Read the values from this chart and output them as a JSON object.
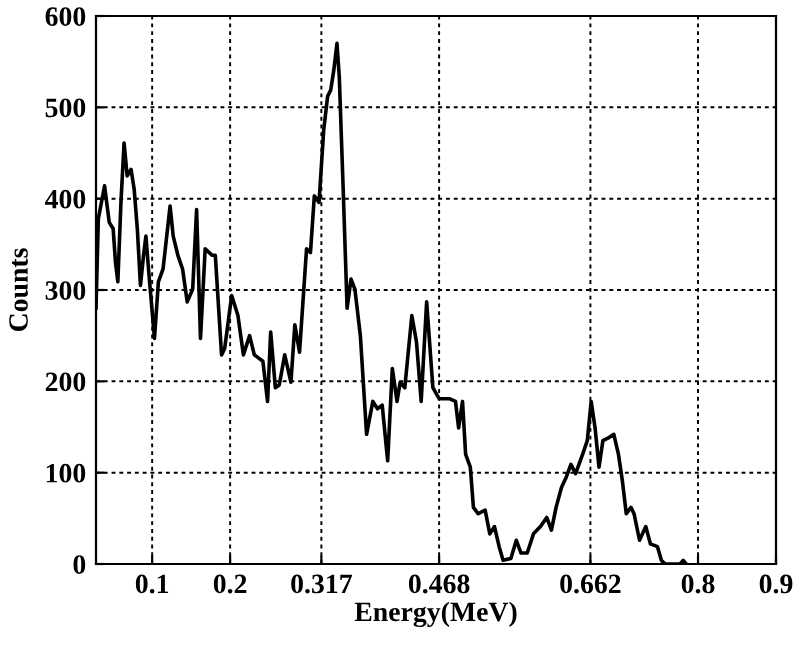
{
  "chart_data": {
    "type": "line",
    "xlabel": "Energy(MeV)",
    "ylabel": "Counts",
    "xlim": [
      0.028,
      0.9
    ],
    "xticks": [
      0.1,
      0.2,
      0.317,
      0.468,
      0.662,
      0.8,
      0.9
    ],
    "ylim": [
      0,
      600
    ],
    "yticks": [
      0,
      100,
      200,
      300,
      400,
      500,
      600
    ],
    "grid": true,
    "series": [
      {
        "color": "#000000",
        "x": [
          0.028,
          0.031,
          0.039,
          0.045,
          0.05,
          0.053,
          0.056,
          0.06,
          0.064,
          0.068,
          0.073,
          0.077,
          0.081,
          0.085,
          0.089,
          0.092,
          0.096,
          0.103,
          0.108,
          0.114,
          0.123,
          0.127,
          0.133,
          0.139,
          0.145,
          0.152,
          0.157,
          0.162,
          0.168,
          0.177,
          0.181,
          0.189,
          0.193,
          0.202,
          0.21,
          0.217,
          0.225,
          0.231,
          0.242,
          0.248,
          0.252,
          0.258,
          0.263,
          0.27,
          0.278,
          0.283,
          0.289,
          0.298,
          0.303,
          0.308,
          0.314,
          0.32,
          0.325,
          0.329,
          0.333,
          0.337,
          0.34,
          0.345,
          0.35,
          0.355,
          0.36,
          0.367,
          0.375,
          0.383,
          0.389,
          0.395,
          0.402,
          0.408,
          0.414,
          0.418,
          0.424,
          0.433,
          0.439,
          0.445,
          0.452,
          0.46,
          0.468,
          0.481,
          0.489,
          0.493,
          0.498,
          0.502,
          0.508,
          0.512,
          0.518,
          0.527,
          0.533,
          0.539,
          0.545,
          0.55,
          0.56,
          0.567,
          0.573,
          0.581,
          0.589,
          0.598,
          0.606,
          0.612,
          0.618,
          0.625,
          0.631,
          0.637,
          0.643,
          0.652,
          0.658,
          0.663,
          0.668,
          0.673,
          0.678,
          0.685,
          0.692,
          0.698,
          0.703,
          0.708,
          0.714,
          0.718,
          0.725,
          0.733,
          0.739,
          0.748,
          0.753,
          0.758,
          0.777,
          0.781,
          0.785
        ],
        "values": [
          280,
          378,
          414,
          374,
          367,
          330,
          309,
          396,
          461,
          425,
          432,
          410,
          367,
          305,
          338,
          359,
          316,
          247,
          309,
          323,
          392,
          359,
          338,
          323,
          287,
          301,
          388,
          247,
          345,
          338,
          338,
          229,
          236,
          294,
          272,
          229,
          250,
          229,
          222,
          178,
          254,
          193,
          196,
          229,
          199,
          262,
          232,
          345,
          341,
          403,
          396,
          475,
          512,
          519,
          541,
          570,
          533,
          410,
          280,
          312,
          301,
          250,
          142,
          178,
          170,
          174,
          113,
          214,
          178,
          199,
          193,
          272,
          243,
          178,
          287,
          193,
          181,
          181,
          178,
          149,
          178,
          120,
          106,
          62,
          55,
          59,
          33,
          41,
          19,
          4,
          6,
          26,
          12,
          12,
          33,
          41,
          51,
          37,
          62,
          84,
          95,
          109,
          99,
          120,
          135,
          178,
          149,
          106,
          135,
          138,
          142,
          120,
          91,
          55,
          62,
          55,
          26,
          41,
          22,
          19,
          4,
          0,
          0,
          4,
          0
        ]
      }
    ]
  }
}
